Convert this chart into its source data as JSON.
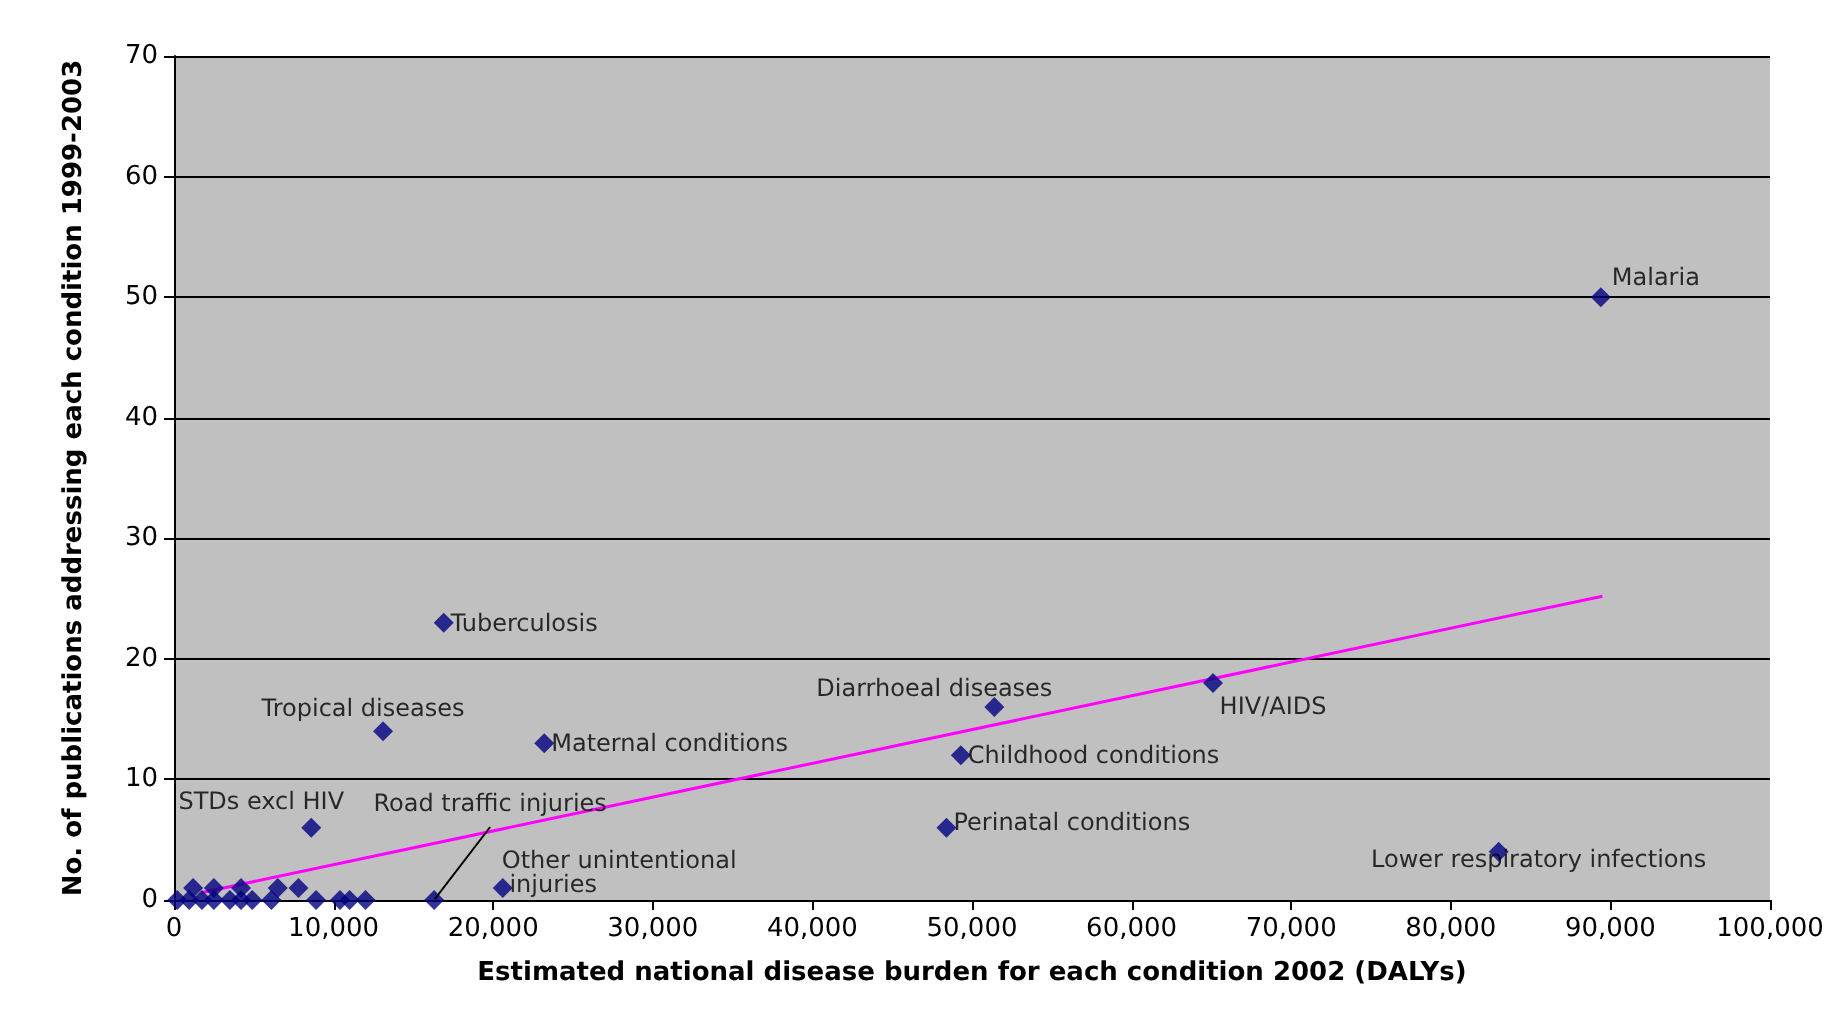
{
  "chart_data": {
    "type": "scatter",
    "xlabel": "Estimated national disease burden for each condition 2002 (DALYs)",
    "ylabel": "No. of publications addressing each condition 1999-2003",
    "xlim": [
      0,
      100000
    ],
    "xticks": [
      {
        "value": 0,
        "label": "0"
      },
      {
        "value": 10000,
        "label": "10,000"
      },
      {
        "value": 20000,
        "label": "20,000"
      },
      {
        "value": 30000,
        "label": "30,000"
      },
      {
        "value": 40000,
        "label": "40,000"
      },
      {
        "value": 50000,
        "label": "50,000"
      },
      {
        "value": 60000,
        "label": "60,000"
      },
      {
        "value": 70000,
        "label": "70,000"
      },
      {
        "value": 80000,
        "label": "80,000"
      },
      {
        "value": 90000,
        "label": "90,000"
      },
      {
        "value": 100000,
        "label": "100,000"
      }
    ],
    "ylim": [
      0,
      70
    ],
    "yticks": [
      0,
      10,
      20,
      30,
      40,
      50,
      60,
      70
    ],
    "grid": "y",
    "marker": "diamond",
    "series": [
      {
        "color": "#000080",
        "x": [
          200,
          950,
          1750,
          2500,
          3500,
          4200,
          4900,
          6100,
          8900,
          10400,
          11000,
          12000,
          16300,
          1200,
          2500,
          4200,
          6500,
          7800,
          8600,
          20600,
          16900,
          13100,
          23200,
          51400,
          49300,
          48400,
          65100,
          83000,
          89400
        ],
        "values": [
          0,
          0,
          0,
          0,
          0,
          0,
          0,
          0,
          0,
          0,
          0,
          0,
          0,
          1,
          1,
          1,
          1,
          1,
          6,
          1,
          23,
          14,
          13,
          16,
          12,
          6,
          18,
          4,
          50
        ]
      },
      {
        "type": "line",
        "color": "#ff00ff",
        "x": [
          1700,
          89500
        ],
        "values": [
          0.6,
          25.2
        ],
        "marker": "none"
      }
    ],
    "annotations": [
      {
        "text": "Malaria",
        "x": 89400,
        "y": 50
      },
      {
        "text": "Tuberculosis",
        "x": 16900,
        "y": 23
      },
      {
        "text": "Tropical diseases",
        "x": 13100,
        "y": 14
      },
      {
        "text": "Maternal conditions",
        "x": 23200,
        "y": 13
      },
      {
        "text": "Diarrhoeal diseases",
        "x": 51400,
        "y": 16
      },
      {
        "text": "HIV/AIDS",
        "x": 65100,
        "y": 18
      },
      {
        "text": "Childhood conditions",
        "x": 49300,
        "y": 12
      },
      {
        "text": "Perinatal conditions",
        "x": 48400,
        "y": 6
      },
      {
        "text": "Lower respiratory infections",
        "x": 83000,
        "y": 4
      },
      {
        "text": "STDs excl HIV",
        "x": 8600,
        "y": 6
      },
      {
        "text": "Road traffic injuries",
        "x": 16300,
        "y": 0
      },
      {
        "text": "Other unintentional injuries",
        "x": 20600,
        "y": 1
      }
    ]
  }
}
